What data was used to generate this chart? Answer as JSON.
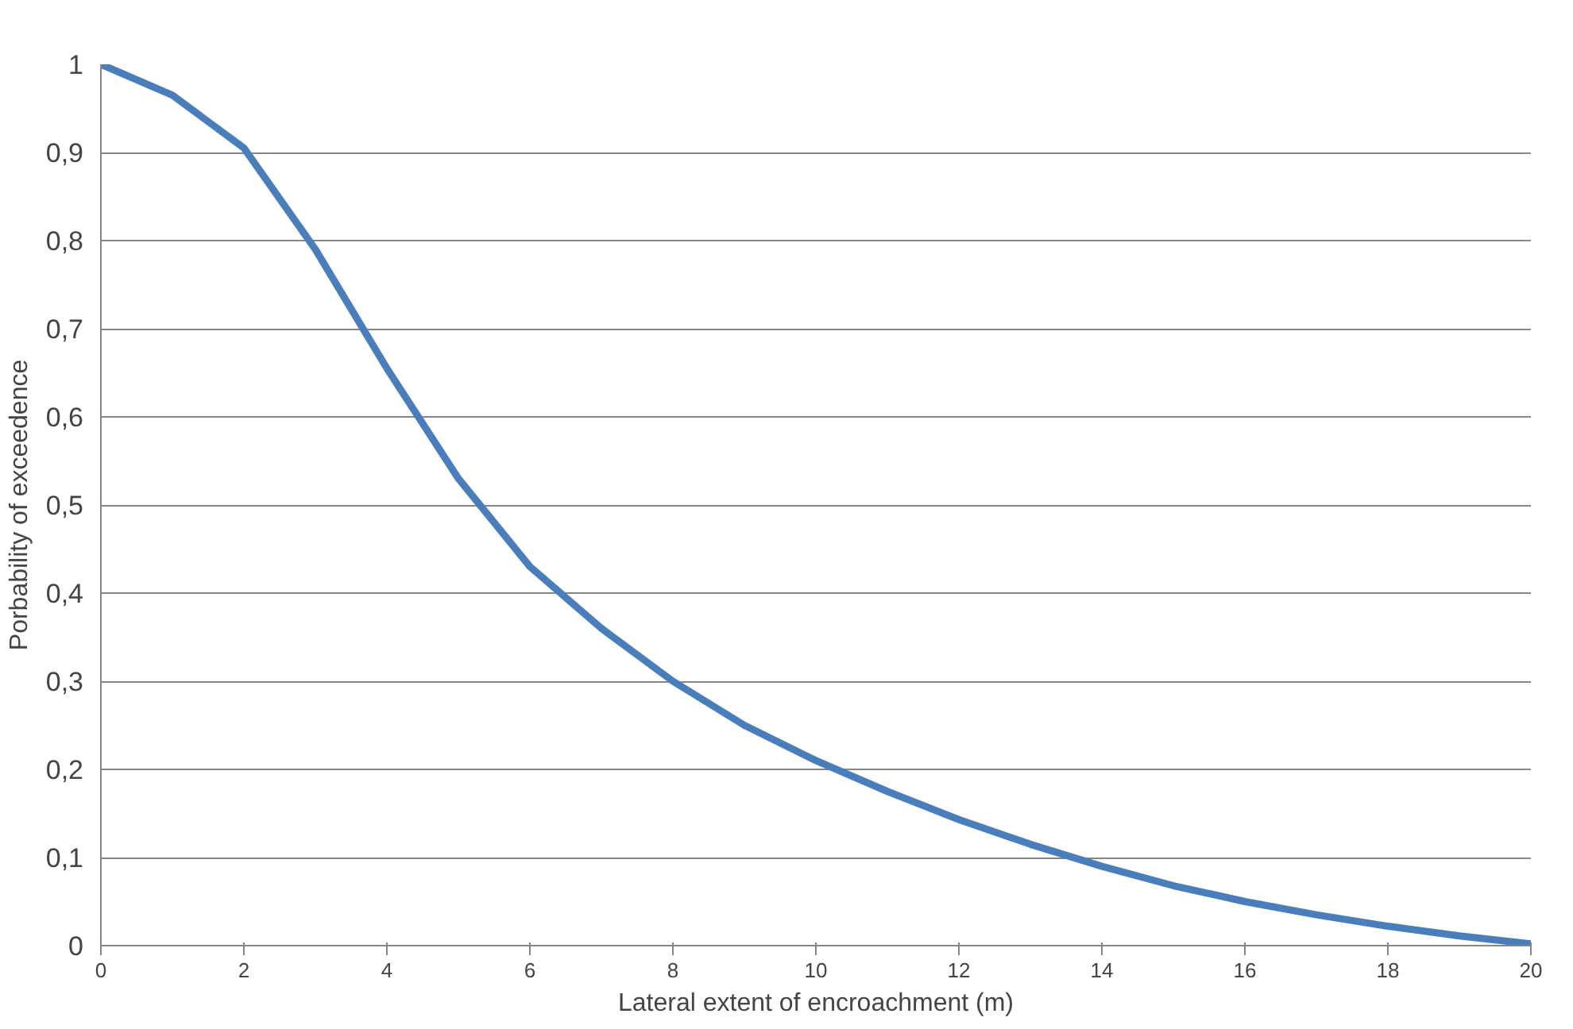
{
  "chart_data": {
    "type": "line",
    "xlabel": "Lateral extent of encroachment (m)",
    "ylabel": "Porbability of exceedence",
    "x": [
      0,
      1,
      2,
      3,
      4,
      5,
      6,
      7,
      8,
      9,
      10,
      11,
      12,
      13,
      14,
      15,
      16,
      17,
      18,
      19,
      20
    ],
    "series": [
      {
        "color": "#4a7ebb",
        "values": [
          1,
          0.965,
          0.905,
          0.79,
          0.655,
          0.53,
          0.43,
          0.36,
          0.3,
          0.25,
          0.21,
          0.175,
          0.143,
          0.115,
          0.09,
          0.068,
          0.05,
          0.035,
          0.022,
          0.011,
          0.002
        ]
      }
    ],
    "xlim": [
      0,
      20
    ],
    "xticks": [
      0,
      2,
      4,
      6,
      8,
      10,
      12,
      14,
      16,
      18,
      20
    ],
    "ylim": [
      0,
      1
    ],
    "yticks": [
      0,
      {
        "value": 0.1,
        "label": "0,1"
      },
      {
        "value": 0.2,
        "label": "0,2"
      },
      {
        "value": 0.3,
        "label": "0,3"
      },
      {
        "value": 0.4,
        "label": "0,4"
      },
      {
        "value": 0.5,
        "label": "0,5"
      },
      {
        "value": 0.6,
        "label": "0,6"
      },
      {
        "value": 0.7,
        "label": "0,7"
      },
      {
        "value": 0.8,
        "label": "0,8"
      },
      {
        "value": 0.9,
        "label": "0,9"
      },
      1
    ],
    "grid": "y",
    "marker": "none",
    "line_style": "solid"
  }
}
